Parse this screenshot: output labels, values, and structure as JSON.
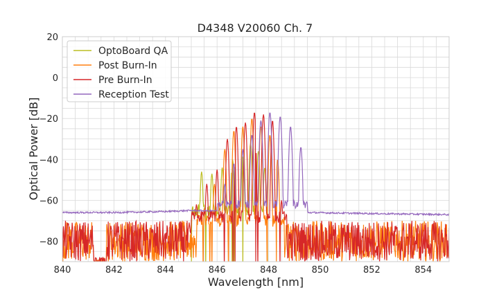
{
  "chart_data": {
    "type": "line",
    "title": "D4348 V20060 Ch. 7",
    "xlabel": "Wavelength [nm]",
    "ylabel": "Optical Power [dB]",
    "xlim": [
      840,
      855
    ],
    "ylim": [
      -90,
      20
    ],
    "xticks": [
      840,
      842,
      844,
      846,
      848,
      850,
      852,
      854
    ],
    "yticks": [
      20,
      0,
      -20,
      -40,
      -60,
      -80
    ],
    "minor_grid": {
      "x_step": 0.5,
      "y_step": 5
    },
    "grid": true,
    "legend_position": "top-left",
    "series": [
      {
        "name": "OptoBoard QA",
        "color": "#bcbd22",
        "noise_floor": [
          -95,
          -88
        ],
        "peaks": [
          [
            845.4,
            -46
          ],
          [
            845.8,
            -47
          ],
          [
            846.2,
            -44
          ],
          [
            846.6,
            -40
          ],
          [
            847.0,
            -37
          ],
          [
            847.3,
            -32
          ],
          [
            847.6,
            -36
          ],
          [
            847.85,
            -44
          ]
        ],
        "envelope": {
          "start": 845.0,
          "end": 847.95,
          "floor": -65
        }
      },
      {
        "name": "Post Burn-In",
        "color": "#ff7f0e",
        "noise_floor": [
          -90,
          -70
        ],
        "peaks": [
          [
            845.5,
            -64
          ],
          [
            845.9,
            -52
          ],
          [
            846.3,
            -35
          ],
          [
            846.65,
            -26
          ],
          [
            847.0,
            -24
          ],
          [
            847.35,
            -20
          ],
          [
            847.7,
            -24
          ],
          [
            848.05,
            -28
          ],
          [
            848.35,
            -40
          ]
        ],
        "envelope": {
          "start": 845.2,
          "end": 848.6,
          "floor": -70
        }
      },
      {
        "name": "Pre Burn-In",
        "color": "#d62728",
        "noise_floor": [
          -90,
          -70
        ],
        "peaks": [
          [
            845.2,
            -62
          ],
          [
            845.6,
            -52
          ],
          [
            846.0,
            -45
          ],
          [
            846.4,
            -30
          ],
          [
            846.75,
            -24
          ],
          [
            847.1,
            -22
          ],
          [
            847.45,
            -17
          ],
          [
            847.8,
            -18
          ],
          [
            848.15,
            -21
          ],
          [
            848.5,
            -60
          ]
        ],
        "envelope": {
          "start": 845.0,
          "end": 848.7,
          "floor": -68
        }
      },
      {
        "name": "Reception Test",
        "color": "#9467bd",
        "baseline": [
          [
            840,
            -66
          ],
          [
            842,
            -66
          ],
          [
            844,
            -65.5
          ],
          [
            845,
            -65
          ],
          [
            849.6,
            -66
          ],
          [
            852,
            -66.5
          ],
          [
            855,
            -67
          ]
        ],
        "peaks": [
          [
            846.3,
            -52
          ],
          [
            846.65,
            -42
          ],
          [
            847.0,
            -35
          ],
          [
            847.35,
            -28
          ],
          [
            847.7,
            -21
          ],
          [
            848.05,
            -17
          ],
          [
            848.45,
            -19
          ],
          [
            848.85,
            -24
          ],
          [
            849.25,
            -34
          ]
        ],
        "envelope": {
          "start": 846.0,
          "end": 849.5,
          "floor": -62
        }
      }
    ]
  }
}
